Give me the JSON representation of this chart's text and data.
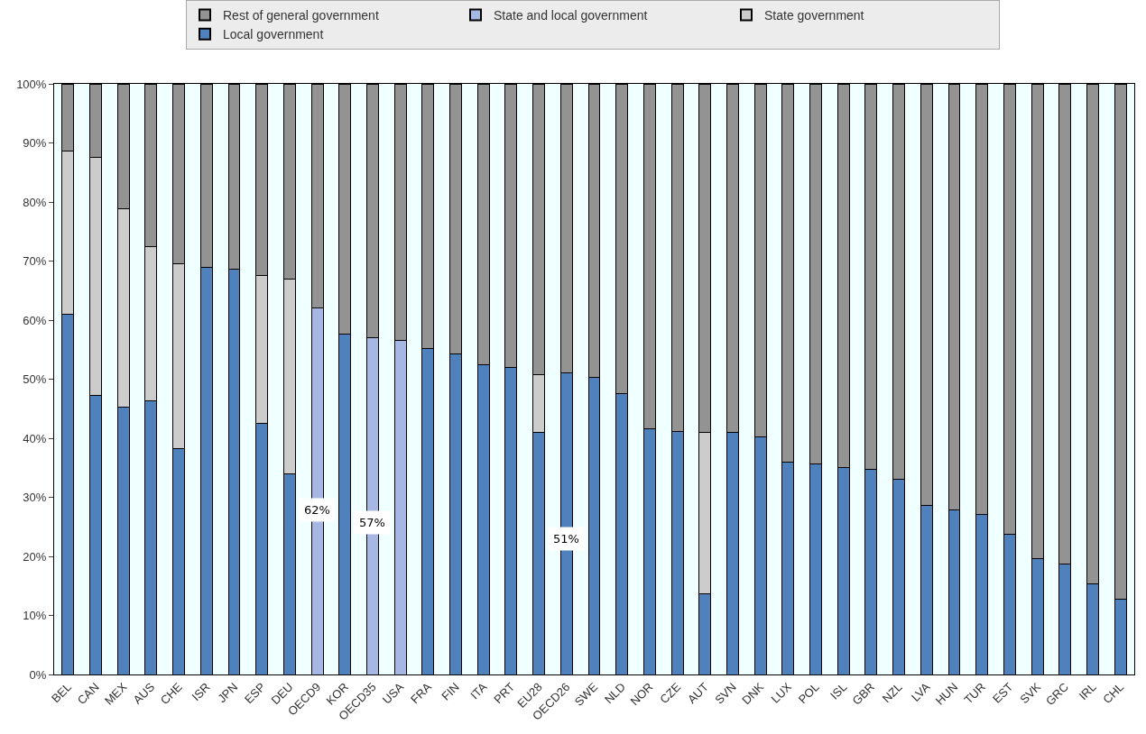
{
  "chart_data": {
    "type": "bar",
    "stacked": true,
    "legend": "top",
    "grid": false,
    "categories": [
      "BEL",
      "CAN",
      "MEX",
      "AUS",
      "CHE",
      "ISR",
      "JPN",
      "ESP",
      "DEU",
      "OECD9",
      "KOR",
      "OECD35",
      "USA",
      "FRA",
      "FIN",
      "ITA",
      "PRT",
      "EU28",
      "OECD26",
      "SWE",
      "NLD",
      "NOR",
      "CZE",
      "AUT",
      "SVN",
      "DNK",
      "LUX",
      "POL",
      "ISL",
      "GBR",
      "NZL",
      "LVA",
      "HUN",
      "TUR",
      "EST",
      "SVK",
      "GRC",
      "IRL",
      "CHL"
    ],
    "series": [
      {
        "name": "Local government",
        "color": "#4f81bd",
        "values": [
          61,
          47.3,
          45.2,
          46.3,
          38.3,
          68.9,
          68.7,
          42.5,
          34,
          null,
          57.6,
          null,
          null,
          55.2,
          54.2,
          52.5,
          52,
          41,
          51,
          50.3,
          47.6,
          41.6,
          41.2,
          13.6,
          41,
          40.3,
          36,
          35.7,
          35,
          34.8,
          33,
          28.6,
          27.8,
          27.1,
          23.8,
          19.6,
          18.7,
          15.4,
          12.7
        ],
        "value_labels": [
          null,
          null,
          null,
          null,
          null,
          null,
          null,
          null,
          null,
          null,
          null,
          null,
          null,
          null,
          null,
          null,
          null,
          null,
          "51%",
          null,
          null,
          null,
          null,
          null,
          null,
          null,
          null,
          null,
          null,
          null,
          null,
          null,
          null,
          null,
          null,
          null,
          null,
          null,
          null
        ]
      },
      {
        "name": "State government",
        "color": "#cccccc",
        "values": [
          27.7,
          40.2,
          33.7,
          26.1,
          31.3,
          null,
          null,
          25.1,
          32.9,
          null,
          null,
          null,
          null,
          null,
          null,
          null,
          null,
          9.7,
          null,
          null,
          null,
          null,
          null,
          27.4,
          null,
          null,
          null,
          null,
          null,
          null,
          null,
          null,
          null,
          null,
          null,
          null,
          null,
          null,
          null
        ]
      },
      {
        "name": "State and local government",
        "color": "#a7b7e3",
        "values": [
          null,
          null,
          null,
          null,
          null,
          null,
          null,
          null,
          null,
          62,
          null,
          57,
          56.5,
          null,
          null,
          null,
          null,
          null,
          null,
          null,
          null,
          null,
          null,
          null,
          null,
          null,
          null,
          null,
          null,
          null,
          null,
          null,
          null,
          null,
          null,
          null,
          null,
          null,
          null
        ],
        "value_labels": [
          null,
          null,
          null,
          null,
          null,
          null,
          null,
          null,
          null,
          "62%",
          null,
          "57%",
          null,
          null,
          null,
          null,
          null,
          null,
          null,
          null,
          null,
          null,
          null,
          null,
          null,
          null,
          null,
          null,
          null,
          null,
          null,
          null,
          null,
          null,
          null,
          null,
          null,
          null,
          null
        ]
      },
      {
        "name": "Rest of general government",
        "color": "#939393",
        "values": [
          11.3,
          12.5,
          21.1,
          27.6,
          30.4,
          31.1,
          31.3,
          32.4,
          33.1,
          38,
          42.4,
          43,
          43.5,
          44.8,
          45.8,
          47.5,
          48,
          49.3,
          49,
          49.7,
          52.4,
          58.4,
          58.8,
          59,
          59,
          59.7,
          64,
          64.3,
          65,
          65.2,
          67,
          71.4,
          72.2,
          72.9,
          76.2,
          80.4,
          81.3,
          84.6,
          87.3
        ]
      }
    ],
    "ylim": [
      0,
      100
    ],
    "yticks": [
      {
        "value": 0,
        "label": "0%"
      },
      {
        "value": 10,
        "label": "10%"
      },
      {
        "value": 20,
        "label": "20%"
      },
      {
        "value": 30,
        "label": "30%"
      },
      {
        "value": 40,
        "label": "40%"
      },
      {
        "value": 50,
        "label": "50%"
      },
      {
        "value": 60,
        "label": "60%"
      },
      {
        "value": 70,
        "label": "70%"
      },
      {
        "value": 80,
        "label": "80%"
      },
      {
        "value": 90,
        "label": "90%"
      },
      {
        "value": 100,
        "label": "100%"
      }
    ]
  }
}
